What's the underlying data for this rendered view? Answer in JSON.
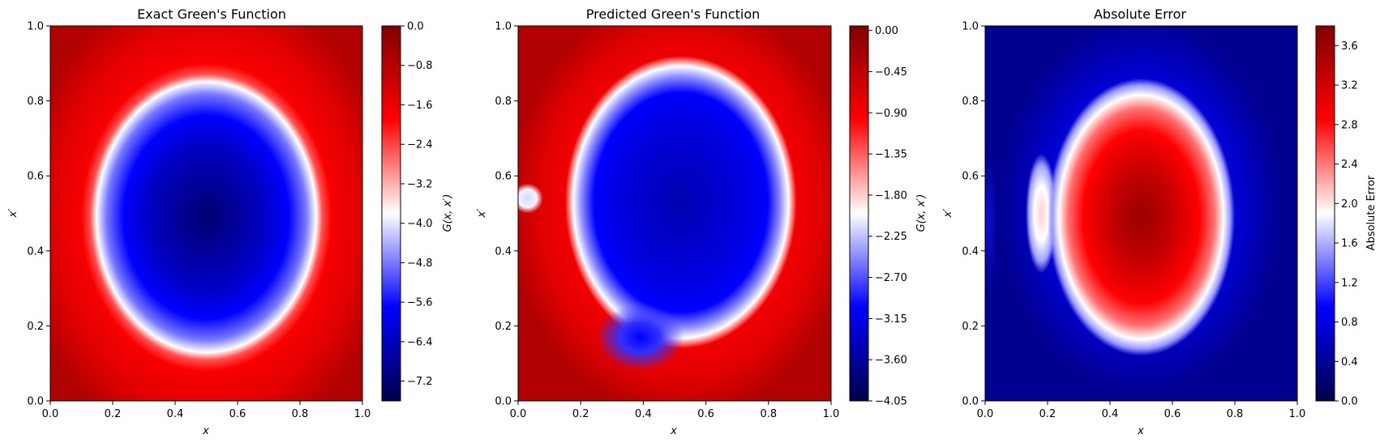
{
  "figure": {
    "background": "#ffffff"
  },
  "chart_data": [
    {
      "type": "heatmap",
      "title": "Exact Green's Function",
      "xlabel": "x",
      "ylabel": "x′",
      "xlim": [
        0,
        1
      ],
      "ylim": [
        0,
        1
      ],
      "xticks": [
        "0.0",
        "0.2",
        "0.4",
        "0.6",
        "0.8",
        "1.0"
      ],
      "yticks": [
        "0.0",
        "0.2",
        "0.4",
        "0.6",
        "0.8",
        "1.0"
      ],
      "colormap": "seismic",
      "colorbar": {
        "label": "G(x, x′)",
        "range": [
          -7.6,
          0.0
        ],
        "ticks": [
          "0.0",
          "−0.8",
          "−1.6",
          "−2.4",
          "−3.2",
          "−4.0",
          "−4.8",
          "−5.6",
          "−6.4",
          "−7.2"
        ],
        "tick_values": [
          0.0,
          -0.8,
          -1.6,
          -2.4,
          -3.2,
          -4.0,
          -4.8,
          -5.6,
          -6.4,
          -7.2
        ]
      },
      "field": {
        "description": "Smooth bowl: near 0 at domain edges, minimum about -7.5 at center (0.5, 0.5)",
        "min": -7.5,
        "max": 0.0,
        "min_location": [
          0.5,
          0.5
        ]
      }
    },
    {
      "type": "heatmap",
      "title": "Predicted Green's Function",
      "xlabel": "x",
      "ylabel": "x′",
      "xlim": [
        0,
        1
      ],
      "ylim": [
        0,
        1
      ],
      "xticks": [
        "0.0",
        "0.2",
        "0.4",
        "0.6",
        "0.8",
        "1.0"
      ],
      "yticks": [
        "0.0",
        "0.2",
        "0.4",
        "0.6",
        "0.8",
        "1.0"
      ],
      "colormap": "seismic",
      "colorbar": {
        "label": "G(x, x′)",
        "range": [
          -4.05,
          0.05
        ],
        "ticks": [
          "0.00",
          "−0.45",
          "−0.90",
          "−1.35",
          "−1.80",
          "−2.25",
          "−2.70",
          "−3.15",
          "−3.60",
          "−4.05"
        ],
        "tick_values": [
          0.0,
          -0.45,
          -0.9,
          -1.35,
          -1.8,
          -2.25,
          -2.7,
          -3.15,
          -3.6,
          -4.05
        ]
      },
      "field": {
        "description": "Irregular basin with minimum about -4.05 over the central region, lobes near bottom, small light-blue spot near x=0.02, x'=0.55",
        "min": -4.05,
        "max": 0.05
      }
    },
    {
      "type": "heatmap",
      "title": "Absolute Error",
      "xlabel": "x",
      "ylabel": "x′",
      "xlim": [
        0,
        1
      ],
      "ylim": [
        0,
        1
      ],
      "xticks": [
        "0.0",
        "0.2",
        "0.4",
        "0.6",
        "0.8",
        "1.0"
      ],
      "yticks": [
        "0.0",
        "0.2",
        "0.4",
        "0.6",
        "0.8",
        "1.0"
      ],
      "colormap": "seismic",
      "colorbar": {
        "label": "Absolute Error",
        "range": [
          0.0,
          3.8
        ],
        "ticks": [
          "0.0",
          "0.4",
          "0.8",
          "1.2",
          "1.6",
          "2.0",
          "2.4",
          "2.8",
          "3.2",
          "3.6"
        ],
        "tick_values": [
          0.0,
          0.4,
          0.8,
          1.2,
          1.6,
          2.0,
          2.4,
          2.8,
          3.2,
          3.6
        ]
      },
      "field": {
        "description": "Error peaks about 3.6 at center (0.5, 0.5), secondary ridge near x=0.18, near 0 at edges",
        "min": 0.0,
        "max": 3.7,
        "max_location": [
          0.5,
          0.5
        ]
      }
    }
  ]
}
